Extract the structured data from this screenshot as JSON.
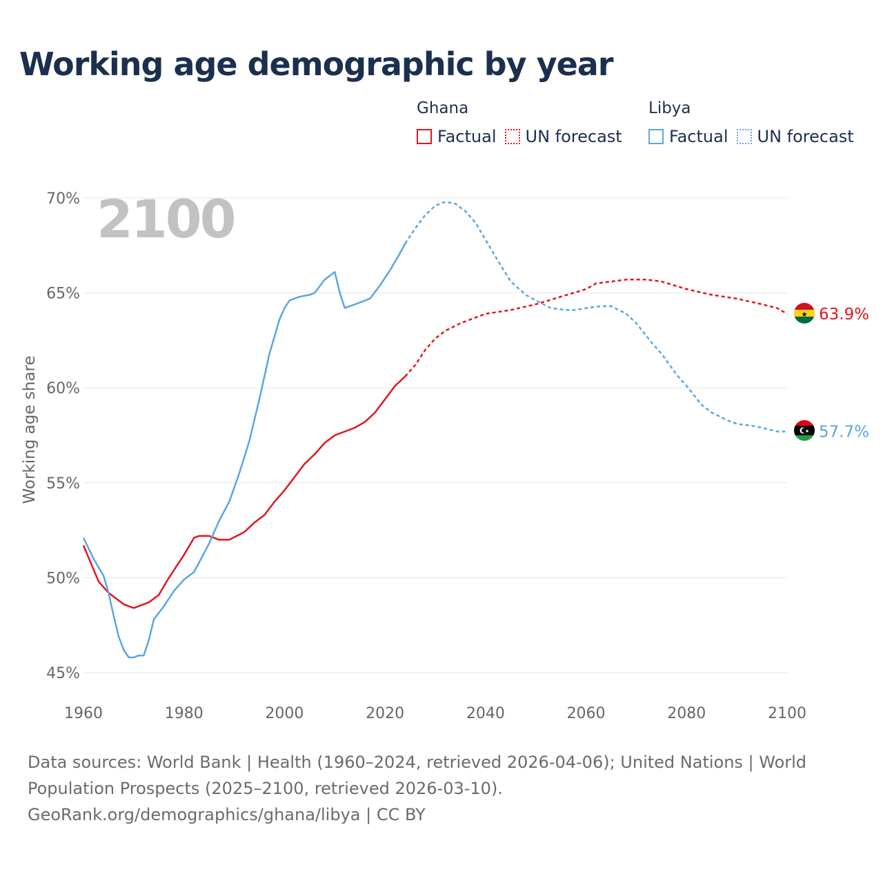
{
  "title": "Working age demographic by year",
  "legend": [
    {
      "country": "Ghana",
      "color": "#e4141b",
      "items": [
        "Factual",
        "UN forecast"
      ]
    },
    {
      "country": "Libya",
      "color": "#5aa5e4",
      "items": [
        "Factual",
        "UN forecast"
      ]
    }
  ],
  "year_label": "2100",
  "sources_line1": "Data sources: World Bank | Health (1960–2024, retrieved 2026-04-06); United Nations | World Population Prospects (2025–2100, retrieved 2026-03-10).",
  "sources_line2": "GeoRank.org/demographics/ghana/libya | CC BY",
  "chart_data": {
    "type": "line",
    "title": "Working age demographic by year",
    "ylabel": "Working age share",
    "xlabel": "",
    "xlim": [
      1960,
      2100
    ],
    "ylim": [
      45,
      70
    ],
    "x_ticks": [
      "1960",
      "1980",
      "2000",
      "2020",
      "2040",
      "2060",
      "2080",
      "2100"
    ],
    "y_ticks": [
      "45%",
      "50%",
      "55%",
      "60%",
      "65%",
      "70%"
    ],
    "series": [
      {
        "name": "Ghana",
        "color": "#e4141b",
        "end_label": "63.9%",
        "factual": [
          [
            1960,
            51.7
          ],
          [
            1963,
            49.8
          ],
          [
            1965,
            49.2
          ],
          [
            1968,
            48.6
          ],
          [
            1970,
            48.4
          ],
          [
            1973,
            48.7
          ],
          [
            1975,
            49.1
          ],
          [
            1977,
            50.0
          ],
          [
            1980,
            51.2
          ],
          [
            1982,
            52.1
          ],
          [
            1983,
            52.2
          ],
          [
            1985,
            52.2
          ],
          [
            1987,
            52.0
          ],
          [
            1989,
            52.0
          ],
          [
            1992,
            52.4
          ],
          [
            1994,
            52.9
          ],
          [
            1996,
            53.3
          ],
          [
            1998,
            54.0
          ],
          [
            2000,
            54.6
          ],
          [
            2002,
            55.3
          ],
          [
            2004,
            56.0
          ],
          [
            2006,
            56.5
          ],
          [
            2008,
            57.1
          ],
          [
            2010,
            57.5
          ],
          [
            2012,
            57.7
          ],
          [
            2014,
            57.9
          ],
          [
            2016,
            58.2
          ],
          [
            2018,
            58.7
          ],
          [
            2020,
            59.4
          ],
          [
            2022,
            60.1
          ],
          [
            2024,
            60.6
          ]
        ],
        "forecast": [
          [
            2024,
            60.6
          ],
          [
            2026,
            61.2
          ],
          [
            2028,
            62.0
          ],
          [
            2030,
            62.6
          ],
          [
            2032,
            63.0
          ],
          [
            2035,
            63.4
          ],
          [
            2040,
            63.9
          ],
          [
            2045,
            64.1
          ],
          [
            2050,
            64.4
          ],
          [
            2055,
            64.8
          ],
          [
            2060,
            65.2
          ],
          [
            2062,
            65.5
          ],
          [
            2065,
            65.6
          ],
          [
            2068,
            65.7
          ],
          [
            2072,
            65.7
          ],
          [
            2075,
            65.6
          ],
          [
            2080,
            65.2
          ],
          [
            2085,
            64.9
          ],
          [
            2090,
            64.7
          ],
          [
            2095,
            64.4
          ],
          [
            2098,
            64.2
          ],
          [
            2100,
            63.9
          ]
        ]
      },
      {
        "name": "Libya",
        "color": "#5aa5e4",
        "end_label": "57.7%",
        "factual": [
          [
            1960,
            52.1
          ],
          [
            1962,
            51.0
          ],
          [
            1964,
            50.1
          ],
          [
            1965,
            49.2
          ],
          [
            1966,
            48.0
          ],
          [
            1967,
            46.9
          ],
          [
            1968,
            46.2
          ],
          [
            1969,
            45.8
          ],
          [
            1970,
            45.8
          ],
          [
            1971,
            45.9
          ],
          [
            1972,
            45.9
          ],
          [
            1973,
            46.7
          ],
          [
            1974,
            47.8
          ],
          [
            1976,
            48.5
          ],
          [
            1978,
            49.3
          ],
          [
            1980,
            49.9
          ],
          [
            1982,
            50.3
          ],
          [
            1983,
            50.8
          ],
          [
            1985,
            51.8
          ],
          [
            1987,
            53.0
          ],
          [
            1989,
            54.0
          ],
          [
            1991,
            55.5
          ],
          [
            1993,
            57.2
          ],
          [
            1995,
            59.4
          ],
          [
            1997,
            61.8
          ],
          [
            1999,
            63.6
          ],
          [
            2000,
            64.2
          ],
          [
            2001,
            64.6
          ],
          [
            2003,
            64.8
          ],
          [
            2005,
            64.9
          ],
          [
            2006,
            65.0
          ],
          [
            2008,
            65.7
          ],
          [
            2010,
            66.1
          ],
          [
            2011,
            65.0
          ],
          [
            2012,
            64.2
          ],
          [
            2013,
            64.3
          ],
          [
            2015,
            64.5
          ],
          [
            2017,
            64.7
          ],
          [
            2019,
            65.4
          ],
          [
            2021,
            66.2
          ],
          [
            2023,
            67.1
          ],
          [
            2024,
            67.6
          ]
        ],
        "forecast": [
          [
            2024,
            67.6
          ],
          [
            2026,
            68.4
          ],
          [
            2028,
            69.1
          ],
          [
            2030,
            69.6
          ],
          [
            2032,
            69.8
          ],
          [
            2034,
            69.7
          ],
          [
            2036,
            69.3
          ],
          [
            2038,
            68.7
          ],
          [
            2040,
            67.8
          ],
          [
            2042,
            66.9
          ],
          [
            2045,
            65.6
          ],
          [
            2048,
            64.9
          ],
          [
            2050,
            64.6
          ],
          [
            2053,
            64.2
          ],
          [
            2056,
            64.1
          ],
          [
            2058,
            64.1
          ],
          [
            2060,
            64.2
          ],
          [
            2063,
            64.3
          ],
          [
            2065,
            64.3
          ],
          [
            2068,
            63.9
          ],
          [
            2070,
            63.4
          ],
          [
            2073,
            62.4
          ],
          [
            2075,
            61.8
          ],
          [
            2078,
            60.7
          ],
          [
            2080,
            60.1
          ],
          [
            2083,
            59.1
          ],
          [
            2085,
            58.7
          ],
          [
            2088,
            58.3
          ],
          [
            2090,
            58.1
          ],
          [
            2093,
            58.0
          ],
          [
            2095,
            57.9
          ],
          [
            2098,
            57.7
          ],
          [
            2100,
            57.7
          ]
        ]
      }
    ]
  }
}
